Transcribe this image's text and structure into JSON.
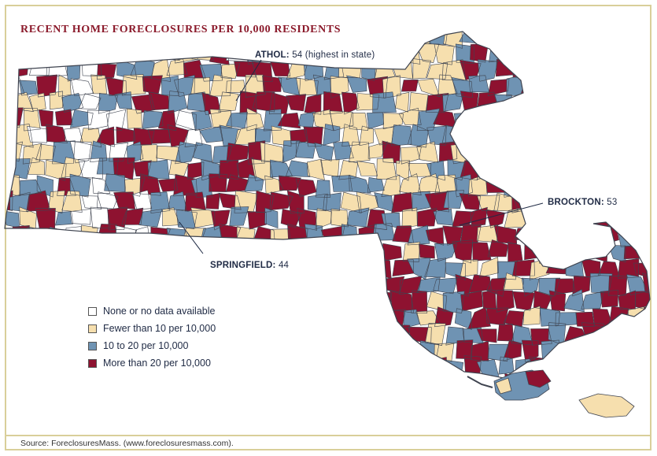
{
  "title": "RECENT HOME FORECLOSURES PER 10,000 RESIDENTS",
  "colors": {
    "none": "#ffffff",
    "low": "#f6dfae",
    "mid": "#6f93b3",
    "high": "#8e1230",
    "border": "#3f4450",
    "accent": "#8b1a2b"
  },
  "callouts": {
    "athol": {
      "name": "ATHOL:",
      "value": "54",
      "note": "(highest in state)"
    },
    "brockton": {
      "name": "BROCKTON:",
      "value": "53"
    },
    "springfield": {
      "name": "SPRINGFIELD:",
      "value": "44"
    }
  },
  "legend": {
    "items": [
      {
        "label": "None or no data available",
        "color": "#ffffff"
      },
      {
        "label": "Fewer than 10 per 10,000",
        "color": "#f6dfae"
      },
      {
        "label": "10 to 20 per 10,000",
        "color": "#6f93b3"
      },
      {
        "label": "More than 20 per 10,000",
        "color": "#8e1230"
      }
    ]
  },
  "source": "Source: ForeclosuresMass. (www.foreclosuresmass.com)."
}
